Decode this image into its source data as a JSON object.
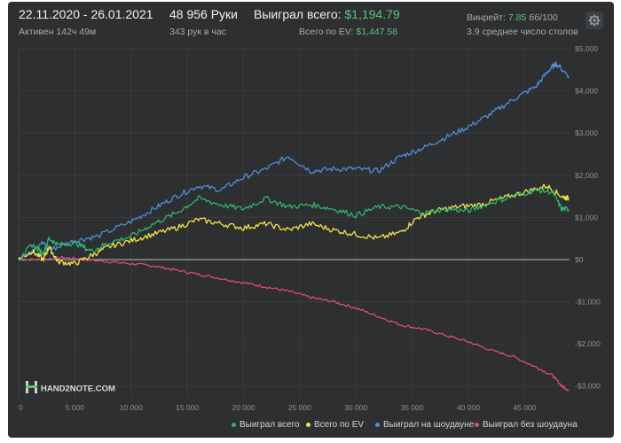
{
  "header": {
    "date_range": "22.11.2020 - 26.01.2021",
    "active": "Активен 142ч 49м",
    "hands": "48 956 Руки",
    "hands_per_hour": "343 рук в час",
    "won_label": "Выиграл всего:",
    "won_value": "$1,194.79",
    "ev_label": "Всего по EV:",
    "ev_value": "$1,447.58",
    "winrate_label": "Винрейт:",
    "winrate_value": "7.85",
    "winrate_unit": "бб/100",
    "tables": "3.9 среднее число столов"
  },
  "logo": "HAND2NOTE.COM",
  "colors": {
    "won_total": "#2fb56f",
    "ev_total": "#f1e44c",
    "showdown": "#4f8fd8",
    "non_showdown": "#dc4a7e",
    "accent_green": "#5dc47a"
  },
  "chart_data": {
    "type": "line",
    "xlim": [
      0,
      49000
    ],
    "ylim": [
      -3300,
      5000
    ],
    "x_ticks": [
      0,
      5000,
      10000,
      15000,
      20000,
      25000,
      30000,
      35000,
      40000,
      45000
    ],
    "x_tick_labels": [
      "0",
      "5 000",
      "10 000",
      "15 000",
      "20 000",
      "25 000",
      "30 000",
      "35 000",
      "40 000",
      "45 000"
    ],
    "y_ticks": [
      5000,
      4000,
      3000,
      2000,
      1000,
      0,
      -1000,
      -2000,
      -3000
    ],
    "y_tick_labels": [
      "$5,000",
      "$4,000",
      "$3,000",
      "$2,000",
      "$1,000",
      "$0",
      "-$1,000",
      "-$2,000",
      "-$3,000"
    ],
    "series": [
      {
        "name": "Выиграл всего",
        "color": "#2fb56f",
        "x": [
          0,
          1200,
          2200,
          2700,
          3500,
          5000,
          6500,
          8000,
          10000,
          12000,
          14000,
          16000,
          18000,
          20000,
          22000,
          24000,
          26000,
          28000,
          30000,
          32000,
          34000,
          36000,
          38000,
          40000,
          42000,
          44000,
          46000,
          47500,
          48300,
          48956
        ],
        "y": [
          0,
          350,
          150,
          500,
          350,
          400,
          200,
          400,
          550,
          850,
          1100,
          1450,
          1300,
          1200,
          1450,
          1250,
          1300,
          1200,
          1050,
          1250,
          1250,
          1100,
          1200,
          1150,
          1350,
          1500,
          1650,
          1600,
          1200,
          1194.79
        ]
      },
      {
        "name": "Всего по EV",
        "color": "#f1e44c",
        "x": [
          0,
          1200,
          2200,
          2700,
          3500,
          5000,
          6500,
          8000,
          10000,
          12000,
          14000,
          16000,
          18000,
          20000,
          22000,
          24000,
          26000,
          28000,
          30000,
          32000,
          34000,
          35500,
          37000,
          39000,
          41000,
          43000,
          45000,
          47000,
          48300,
          48956
        ],
        "y": [
          0,
          200,
          0,
          300,
          -50,
          -100,
          100,
          300,
          450,
          600,
          750,
          950,
          850,
          750,
          850,
          700,
          850,
          700,
          600,
          500,
          650,
          1000,
          1150,
          1250,
          1300,
          1450,
          1600,
          1750,
          1500,
          1447.58
        ]
      },
      {
        "name": "Выиграл на шоудауне",
        "color": "#4f8fd8",
        "x": [
          0,
          2000,
          3000,
          5000,
          7000,
          10000,
          12000,
          14000,
          16000,
          18000,
          20000,
          22000,
          24000,
          26000,
          28000,
          30000,
          32000,
          34000,
          36000,
          38000,
          40000,
          42000,
          44000,
          46000,
          47200,
          47800,
          48956
        ],
        "y": [
          0,
          400,
          250,
          450,
          550,
          900,
          1200,
          1500,
          1750,
          1650,
          1950,
          2150,
          2450,
          2100,
          2150,
          2150,
          2100,
          2450,
          2650,
          2900,
          3150,
          3450,
          3800,
          4100,
          4500,
          4650,
          4350
        ]
      },
      {
        "name": "Выиграл без шоудауна",
        "color": "#dc4a7e",
        "x": [
          0,
          2000,
          4000,
          6000,
          8000,
          10000,
          12000,
          14000,
          16000,
          18000,
          20000,
          22000,
          24000,
          26000,
          28000,
          30000,
          32000,
          34000,
          36000,
          38000,
          40000,
          42000,
          44000,
          46000,
          47500,
          48300,
          48956
        ],
        "y": [
          0,
          0,
          50,
          0,
          -50,
          -100,
          -150,
          -250,
          -350,
          -450,
          -550,
          -650,
          -750,
          -900,
          -1000,
          -1150,
          -1350,
          -1550,
          -1650,
          -1800,
          -1950,
          -2150,
          -2300,
          -2550,
          -2750,
          -3000,
          -3100
        ]
      }
    ],
    "grid": "vertical-and-horizontal",
    "legend_position": "bottom-right"
  }
}
